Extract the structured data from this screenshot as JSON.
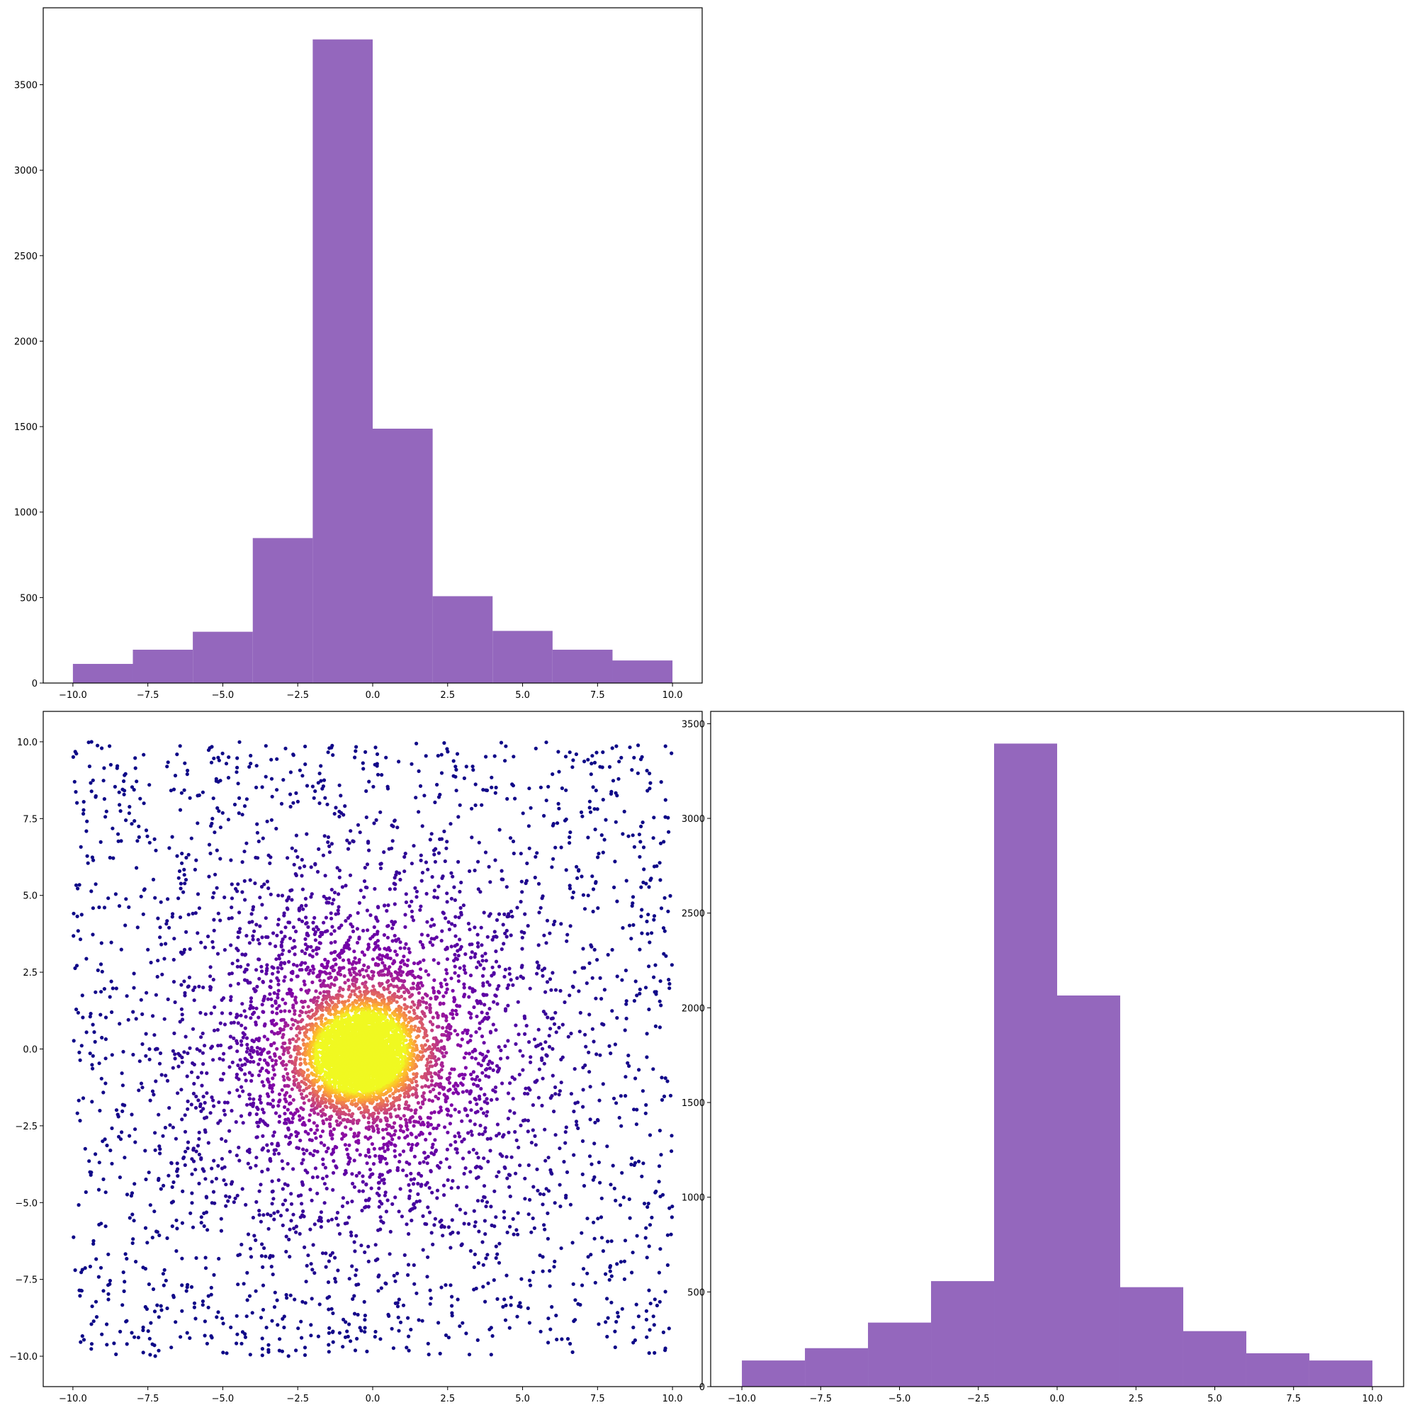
{
  "chart_data": [
    {
      "type": "bar",
      "panel": "top-left",
      "bin_edges": [
        -10,
        -8,
        -6,
        -4,
        -2,
        0,
        2,
        4,
        6,
        8,
        10
      ],
      "values": [
        112,
        195,
        300,
        848,
        3765,
        1488,
        508,
        305,
        195,
        132
      ],
      "xlim": [
        -10.99,
        10.99
      ],
      "ylim": [
        0,
        3950
      ],
      "x_ticks": [
        -10.0,
        -7.5,
        -5.0,
        -2.5,
        0.0,
        2.5,
        5.0,
        7.5,
        10.0
      ],
      "x_tick_labels": [
        "−10.0",
        "−7.5",
        "−5.0",
        "−2.5",
        "0.0",
        "2.5",
        "5.0",
        "7.5",
        "10.0"
      ],
      "y_ticks": [
        0,
        500,
        1000,
        1500,
        2000,
        2500,
        3000,
        3500
      ],
      "y_tick_labels": [
        "0",
        "500",
        "1000",
        "1500",
        "2000",
        "2500",
        "3000",
        "3500"
      ],
      "bar_color": "#9467bd",
      "grid": false,
      "title": "",
      "xlabel": "",
      "ylabel": ""
    },
    {
      "type": "scatter",
      "panel": "bottom-left",
      "description_of_data": "approx. 8000 points, heavy-tailed around origin, within [-10,10] on both axes; colored by density (plasma colormap)",
      "point_count": 8000,
      "core_scale": 0.8,
      "halo_scale": 2.5,
      "range": [
        -10,
        10
      ],
      "xlim": [
        -10.99,
        10.99
      ],
      "ylim": [
        -10.99,
        10.99
      ],
      "x_ticks": [
        -10.0,
        -7.5,
        -5.0,
        -2.5,
        0.0,
        2.5,
        5.0,
        7.5,
        10.0
      ],
      "x_tick_labels": [
        "−10.0",
        "−7.5",
        "−5.0",
        "−2.5",
        "0.0",
        "2.5",
        "5.0",
        "7.5",
        "10.0"
      ],
      "y_ticks": [
        -10.0,
        -7.5,
        -5.0,
        -2.5,
        0.0,
        2.5,
        5.0,
        7.5,
        10.0
      ],
      "y_tick_labels": [
        "−10.0",
        "−7.5",
        "−5.0",
        "−2.5",
        "0.0",
        "2.5",
        "5.0",
        "7.5",
        "10.0"
      ],
      "colormap": "plasma",
      "grid": false,
      "title": "",
      "xlabel": "",
      "ylabel": ""
    },
    {
      "type": "bar",
      "panel": "bottom-right",
      "bin_edges": [
        -10,
        -8,
        -6,
        -4,
        -2,
        0,
        2,
        4,
        6,
        8,
        10
      ],
      "values": [
        138,
        203,
        338,
        557,
        3395,
        2065,
        525,
        293,
        176,
        138
      ],
      "xlim": [
        -10.99,
        10.99
      ],
      "ylim": [
        0,
        3565
      ],
      "x_ticks": [
        -10.0,
        -7.5,
        -5.0,
        -2.5,
        0.0,
        2.5,
        5.0,
        7.5,
        10.0
      ],
      "x_tick_labels": [
        "−10.0",
        "−7.5",
        "−5.0",
        "−2.5",
        "0.0",
        "2.5",
        "5.0",
        "7.5",
        "10.0"
      ],
      "y_ticks": [
        0,
        500,
        1000,
        1500,
        2000,
        2500,
        3000,
        3500
      ],
      "y_tick_labels": [
        "0",
        "500",
        "1000",
        "1500",
        "2000",
        "2500",
        "3000",
        "3500"
      ],
      "bar_color": "#9467bd",
      "grid": false,
      "title": "",
      "xlabel": "",
      "ylabel": ""
    }
  ]
}
